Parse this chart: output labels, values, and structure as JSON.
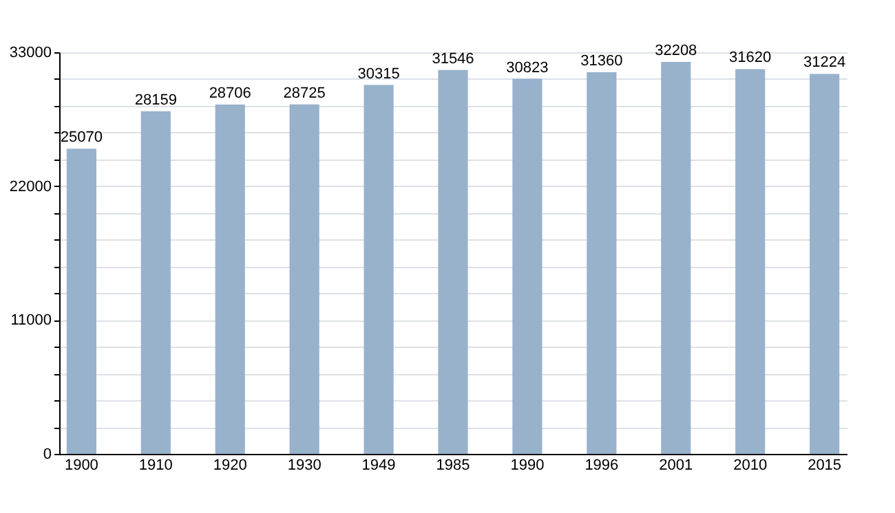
{
  "chart_data": {
    "type": "bar",
    "categories": [
      "1900",
      "1910",
      "1920",
      "1930",
      "1949",
      "1985",
      "1990",
      "1996",
      "2001",
      "2010",
      "2015"
    ],
    "values": [
      25070,
      28159,
      28706,
      28725,
      30315,
      31546,
      30823,
      31360,
      32208,
      31620,
      31224
    ],
    "color": "#98b2cc",
    "ylim": [
      0,
      33000
    ],
    "yticks": [
      0,
      {
        "value": 2200,
        "label": null
      },
      {
        "value": 4400,
        "label": null
      },
      {
        "value": 6600,
        "label": null
      },
      {
        "value": 8800,
        "label": null
      },
      11000,
      {
        "value": 13200,
        "label": null
      },
      {
        "value": 15400,
        "label": null
      },
      {
        "value": 17600,
        "label": null
      },
      {
        "value": 19800,
        "label": null
      },
      22000,
      {
        "value": 24200,
        "label": null
      },
      {
        "value": 26400,
        "label": null
      },
      {
        "value": 28600,
        "label": null
      },
      {
        "value": 30800,
        "label": null
      },
      33000
    ],
    "grid": true,
    "data_labels": true
  }
}
